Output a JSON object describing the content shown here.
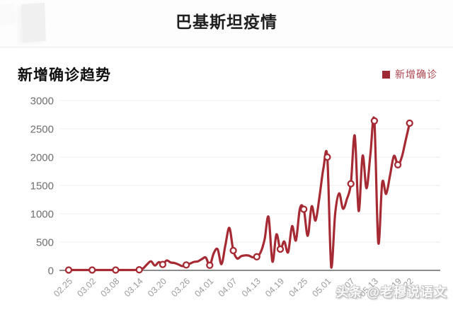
{
  "header": {
    "title": "巴基斯坦疫情"
  },
  "panel": {
    "section_title": "新增确诊趋势",
    "legend": {
      "label": "新增确诊",
      "color": "#9e2b33"
    }
  },
  "watermark": "头条 @老穆说语文",
  "colors": {
    "line": "#a62a33",
    "marker_fill": "#ffffff",
    "grid": "#ededed",
    "axis": "#8c8c8c",
    "y_label": "#6f6f6f",
    "x_label": "#9b9b9b"
  },
  "chart_data": {
    "type": "line",
    "title": "新增确诊趋势",
    "series_name": "新增确诊",
    "smooth": true,
    "grid": true,
    "legend_position": "top-right",
    "ylim": [
      0,
      3000
    ],
    "y_ticks": [
      0,
      500,
      1000,
      1500,
      2000,
      2500,
      3000
    ],
    "x": [
      "02.25",
      "02.26",
      "02.27",
      "02.28",
      "02.29",
      "03.01",
      "03.02",
      "03.03",
      "03.04",
      "03.05",
      "03.06",
      "03.07",
      "03.08",
      "03.09",
      "03.10",
      "03.11",
      "03.12",
      "03.13",
      "03.14",
      "03.15",
      "03.16",
      "03.17",
      "03.18",
      "03.19",
      "03.20",
      "03.21",
      "03.22",
      "03.23",
      "03.24",
      "03.25",
      "03.26",
      "03.27",
      "03.28",
      "03.29",
      "03.30",
      "03.31",
      "04.01",
      "04.02",
      "04.03",
      "04.04",
      "04.05",
      "04.06",
      "04.07",
      "04.08",
      "04.09",
      "04.10",
      "04.11",
      "04.12",
      "04.13",
      "04.14",
      "04.15",
      "04.16",
      "04.17",
      "04.18",
      "04.19",
      "04.20",
      "04.21",
      "04.22",
      "04.23",
      "04.24",
      "04.25",
      "04.26",
      "04.27",
      "04.28",
      "04.29",
      "04.30",
      "05.01",
      "05.02",
      "05.03",
      "05.04",
      "05.05",
      "05.06",
      "05.07",
      "05.08",
      "05.09",
      "05.10",
      "05.11",
      "05.12",
      "05.13",
      "05.14",
      "05.15",
      "05.16",
      "05.17",
      "05.18",
      "05.19",
      "05.20",
      "05.21",
      "05.22"
    ],
    "values": [
      0,
      2,
      0,
      0,
      2,
      0,
      0,
      1,
      0,
      1,
      1,
      0,
      0,
      4,
      2,
      0,
      1,
      8,
      10,
      35,
      105,
      160,
      85,
      145,
      105,
      175,
      140,
      130,
      105,
      75,
      95,
      120,
      150,
      160,
      200,
      225,
      90,
      300,
      375,
      110,
      450,
      750,
      350,
      210,
      250,
      265,
      260,
      230,
      240,
      320,
      550,
      945,
      155,
      635,
      375,
      510,
      320,
      780,
      530,
      1090,
      1080,
      610,
      1130,
      880,
      1300,
      1800,
      2000,
      50,
      1000,
      1360,
      1090,
      1260,
      1530,
      2380,
      1050,
      2025,
      1450,
      2050,
      2640,
      490,
      1550,
      1350,
      1675,
      2020,
      1865,
      2000,
      2300,
      2600
    ],
    "x_tick_labels": [
      "02.25",
      "03.02",
      "03.08",
      "03.14",
      "03.20",
      "03.26",
      "04.01",
      "04.07",
      "04.13",
      "04.19",
      "04.25",
      "05.01",
      "05.07",
      "05.13",
      "05.19",
      "05.22"
    ],
    "marker_indices": [
      0,
      6,
      12,
      18,
      24,
      30,
      36,
      42,
      48,
      54,
      60,
      66,
      72,
      78,
      84,
      87
    ]
  }
}
